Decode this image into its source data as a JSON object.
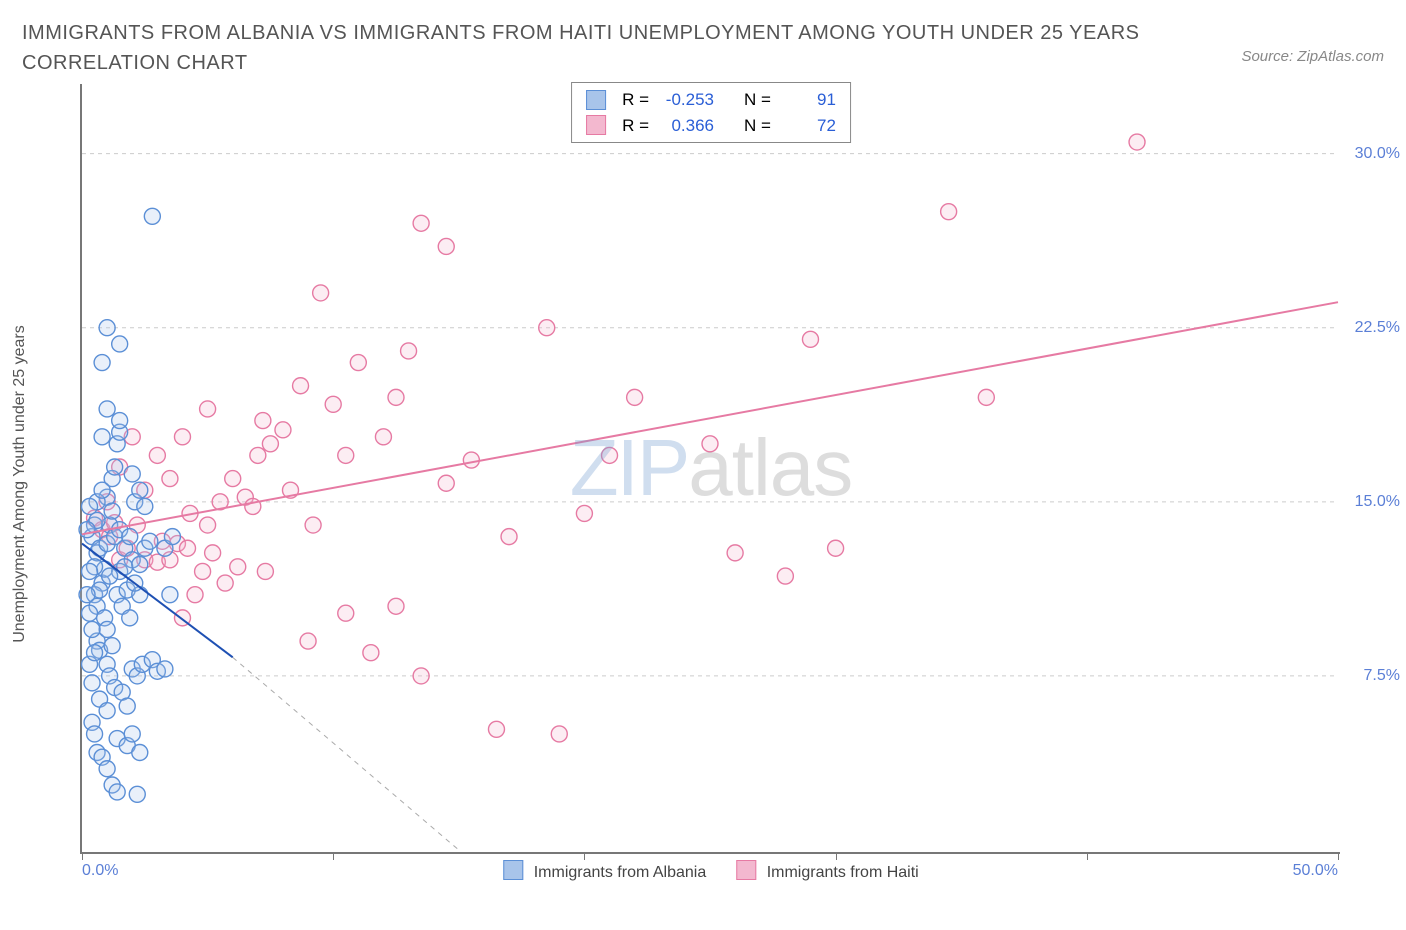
{
  "title": "IMMIGRANTS FROM ALBANIA VS IMMIGRANTS FROM HAITI UNEMPLOYMENT AMONG YOUTH UNDER 25 YEARS CORRELATION CHART",
  "source_label": "Source: ZipAtlas.com",
  "ylabel": "Unemployment Among Youth under 25 years",
  "watermark_zip": "ZIP",
  "watermark_atlas": "atlas",
  "chart": {
    "type": "scatter",
    "xlim": [
      0,
      50
    ],
    "ylim": [
      0,
      33
    ],
    "xtick_labels": {
      "0": "0.0%",
      "50": "50.0%"
    },
    "xtick_positions": [
      0,
      10,
      20,
      30,
      40,
      50
    ],
    "ytick_labels": {
      "7.5": "7.5%",
      "15": "15.0%",
      "22.5": "22.5%",
      "30": "30.0%"
    },
    "ygrid_positions": [
      7.5,
      15,
      22.5,
      30
    ],
    "grid_color": "#cccccc",
    "grid_dash": "4,4",
    "background_color": "#ffffff",
    "marker_radius": 8,
    "marker_stroke_width": 1.4,
    "marker_fill_opacity": 0.25,
    "trendline_width": 2,
    "dashed_extension_width": 1,
    "dashed_extension_dash": "5,5",
    "tick_label_color": "#5b7fd6"
  },
  "series": {
    "albania": {
      "label": "Immigrants from Albania",
      "color": "#5b8fd6",
      "fill": "#a8c4ea",
      "R": "-0.253",
      "N": "91",
      "trendline": {
        "x1": 0,
        "y1": 13.2,
        "x2": 6,
        "y2": 8.3,
        "dash_to_x": 15,
        "dash_to_y": 0
      },
      "points": [
        [
          0.4,
          13.5
        ],
        [
          0.5,
          14.0
        ],
        [
          0.6,
          12.8
        ],
        [
          0.7,
          13.0
        ],
        [
          0.8,
          11.5
        ],
        [
          0.5,
          11.0
        ],
        [
          0.6,
          10.5
        ],
        [
          0.9,
          12.1
        ],
        [
          1.0,
          15.2
        ],
        [
          1.1,
          14.0
        ],
        [
          1.2,
          16.0
        ],
        [
          1.3,
          16.5
        ],
        [
          1.4,
          17.5
        ],
        [
          1.5,
          18.0
        ],
        [
          1.5,
          18.5
        ],
        [
          0.8,
          17.8
        ],
        [
          1.0,
          19.0
        ],
        [
          1.2,
          14.6
        ],
        [
          0.6,
          9.0
        ],
        [
          0.7,
          8.6
        ],
        [
          1.0,
          8.0
        ],
        [
          1.1,
          7.5
        ],
        [
          1.3,
          7.0
        ],
        [
          1.6,
          6.8
        ],
        [
          1.8,
          6.2
        ],
        [
          2.0,
          7.8
        ],
        [
          2.2,
          7.5
        ],
        [
          2.4,
          8.0
        ],
        [
          2.8,
          8.2
        ],
        [
          3.0,
          7.7
        ],
        [
          3.3,
          7.8
        ],
        [
          0.4,
          5.5
        ],
        [
          0.5,
          5.0
        ],
        [
          0.6,
          4.2
        ],
        [
          0.8,
          4.0
        ],
        [
          1.0,
          3.5
        ],
        [
          1.2,
          2.8
        ],
        [
          1.4,
          2.5
        ],
        [
          2.2,
          2.4
        ],
        [
          1.4,
          4.8
        ],
        [
          1.8,
          4.5
        ],
        [
          2.0,
          5.0
        ],
        [
          2.3,
          4.2
        ],
        [
          0.7,
          6.5
        ],
        [
          1.0,
          6.0
        ],
        [
          0.3,
          10.2
        ],
        [
          0.6,
          15.0
        ],
        [
          1.0,
          13.2
        ],
        [
          1.3,
          13.5
        ],
        [
          1.5,
          12.0
        ],
        [
          1.5,
          13.8
        ],
        [
          1.7,
          13.0
        ],
        [
          1.9,
          13.5
        ],
        [
          2.0,
          12.5
        ],
        [
          2.5,
          13.0
        ],
        [
          2.7,
          13.3
        ],
        [
          0.8,
          21.0
        ],
        [
          1.5,
          21.8
        ],
        [
          1.0,
          22.5
        ],
        [
          2.8,
          27.3
        ],
        [
          2.0,
          16.2
        ],
        [
          2.1,
          15.0
        ],
        [
          2.3,
          15.5
        ],
        [
          2.5,
          14.8
        ],
        [
          3.3,
          13.0
        ],
        [
          3.6,
          13.5
        ],
        [
          0.8,
          15.5
        ],
        [
          0.6,
          14.2
        ],
        [
          0.5,
          12.2
        ],
        [
          0.7,
          11.2
        ],
        [
          0.9,
          10.0
        ],
        [
          1.0,
          9.5
        ],
        [
          1.1,
          11.8
        ],
        [
          1.4,
          11.0
        ],
        [
          1.6,
          10.5
        ],
        [
          1.8,
          11.2
        ],
        [
          1.9,
          10.0
        ],
        [
          2.3,
          11.0
        ],
        [
          1.2,
          8.8
        ],
        [
          3.5,
          11.0
        ],
        [
          0.3,
          8.0
        ],
        [
          0.4,
          7.2
        ],
        [
          0.5,
          8.5
        ],
        [
          0.2,
          11.0
        ],
        [
          0.3,
          12.0
        ],
        [
          0.2,
          13.8
        ],
        [
          0.4,
          9.5
        ],
        [
          1.7,
          12.2
        ],
        [
          2.3,
          12.3
        ],
        [
          2.1,
          11.5
        ],
        [
          0.3,
          14.8
        ]
      ]
    },
    "haiti": {
      "label": "Immigrants from Haiti",
      "color": "#e67aa3",
      "fill": "#f3b8cf",
      "R": "0.366",
      "N": "72",
      "trendline": {
        "x1": 0,
        "y1": 13.6,
        "x2": 50,
        "y2": 23.6
      },
      "points": [
        [
          0.5,
          14.3
        ],
        [
          0.8,
          13.8
        ],
        [
          1.1,
          13.5
        ],
        [
          1.3,
          14.1
        ],
        [
          1.5,
          12.5
        ],
        [
          1.8,
          13.0
        ],
        [
          2.2,
          14.0
        ],
        [
          2.5,
          12.5
        ],
        [
          3.0,
          12.4
        ],
        [
          3.2,
          13.3
        ],
        [
          3.5,
          12.5
        ],
        [
          3.8,
          13.2
        ],
        [
          4.2,
          13.0
        ],
        [
          4.8,
          12.0
        ],
        [
          4.3,
          14.5
        ],
        [
          5.0,
          14.0
        ],
        [
          5.5,
          15.0
        ],
        [
          6.0,
          16.0
        ],
        [
          6.5,
          15.2
        ],
        [
          7.0,
          17.0
        ],
        [
          7.2,
          18.5
        ],
        [
          7.5,
          17.5
        ],
        [
          8.0,
          18.1
        ],
        [
          8.3,
          15.5
        ],
        [
          8.7,
          20.0
        ],
        [
          10.0,
          19.2
        ],
        [
          10.5,
          17.0
        ],
        [
          11.0,
          21.0
        ],
        [
          12.0,
          17.8
        ],
        [
          12.5,
          19.5
        ],
        [
          13.0,
          21.5
        ],
        [
          13.5,
          27.0
        ],
        [
          14.5,
          26.0
        ],
        [
          9.5,
          24.0
        ],
        [
          9.0,
          9.0
        ],
        [
          10.5,
          10.2
        ],
        [
          11.5,
          8.5
        ],
        [
          12.5,
          10.5
        ],
        [
          13.5,
          7.5
        ],
        [
          16.5,
          5.2
        ],
        [
          19.0,
          5.0
        ],
        [
          18.5,
          22.5
        ],
        [
          21.0,
          17.0
        ],
        [
          22.0,
          19.5
        ],
        [
          20.0,
          14.5
        ],
        [
          25.0,
          17.5
        ],
        [
          26.0,
          12.8
        ],
        [
          28.0,
          11.8
        ],
        [
          29.0,
          22.0
        ],
        [
          30.0,
          13.0
        ],
        [
          42.0,
          30.5
        ],
        [
          34.5,
          27.5
        ],
        [
          36.0,
          19.5
        ],
        [
          4.0,
          10.0
        ],
        [
          4.5,
          11.0
        ],
        [
          5.2,
          12.8
        ],
        [
          5.7,
          11.5
        ],
        [
          6.2,
          12.2
        ],
        [
          6.8,
          14.8
        ],
        [
          7.3,
          12.0
        ],
        [
          2.5,
          15.5
        ],
        [
          3.0,
          17.0
        ],
        [
          3.5,
          16.0
        ],
        [
          4.0,
          17.8
        ],
        [
          5.0,
          19.0
        ],
        [
          1.0,
          15.0
        ],
        [
          1.5,
          16.5
        ],
        [
          2.0,
          17.8
        ],
        [
          9.2,
          14.0
        ],
        [
          14.5,
          15.8
        ],
        [
          15.5,
          16.8
        ],
        [
          17.0,
          13.5
        ]
      ]
    }
  },
  "legend_strings": {
    "R_label": "R =",
    "N_label": "N ="
  }
}
